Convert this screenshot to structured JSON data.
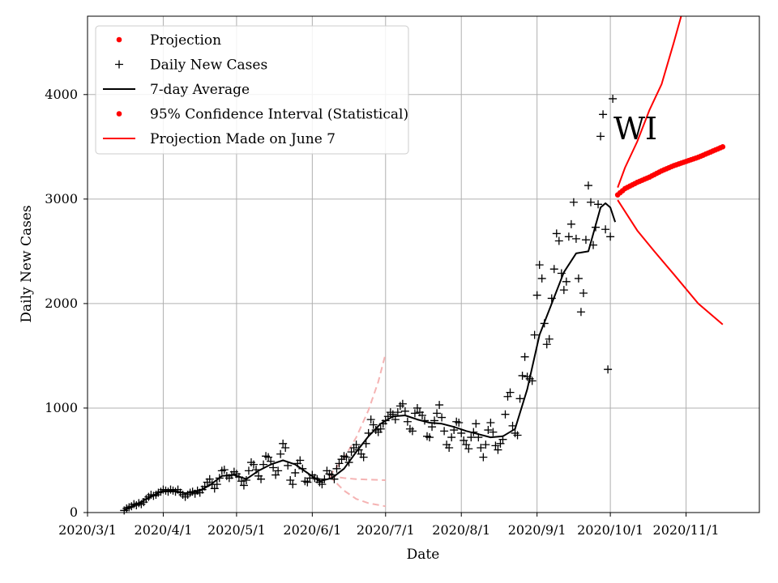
{
  "chart_data": {
    "type": "line",
    "title": "",
    "xlabel": "Date",
    "ylabel": "Daily New Cases",
    "annotation": "WI",
    "x_unit": "days since 2020-03-01",
    "xlim": [
      0,
      275
    ],
    "ylim": [
      0,
      4750
    ],
    "grid": true,
    "legend_position": "top-left",
    "x_ticks": [
      {
        "label": "2020/3/1",
        "day": 0
      },
      {
        "label": "2020/4/1",
        "day": 31
      },
      {
        "label": "2020/5/1",
        "day": 61
      },
      {
        "label": "2020/6/1",
        "day": 92
      },
      {
        "label": "2020/7/1",
        "day": 122
      },
      {
        "label": "2020/8/1",
        "day": 153
      },
      {
        "label": "2020/9/1",
        "day": 184
      },
      {
        "label": "2020/10/1",
        "day": 214
      },
      {
        "label": "2020/11/1",
        "day": 245
      }
    ],
    "y_ticks": [
      {
        "label": "0",
        "value": 0
      },
      {
        "label": "1000",
        "value": 1000
      },
      {
        "label": "2000",
        "value": 2000
      },
      {
        "label": "3000",
        "value": 3000
      },
      {
        "label": "4000",
        "value": 4000
      }
    ],
    "legend": [
      {
        "label": "Projection",
        "style": "dot",
        "color": "#ff0000"
      },
      {
        "label": "Daily New Cases",
        "style": "plus",
        "color": "#000000"
      },
      {
        "label": "7-day Average",
        "style": "line",
        "color": "#000000"
      },
      {
        "label": "95% Confidence Interval (Statistical)",
        "style": "dot",
        "color": "#ff0000"
      },
      {
        "label": "Projection Made on June 7",
        "style": "line",
        "color": "#ff0000"
      }
    ],
    "series": {
      "daily_new_cases": {
        "name": "Daily New Cases",
        "color": "#000000",
        "points": [
          [
            15,
            20
          ],
          [
            16,
            40
          ],
          [
            17,
            50
          ],
          [
            18,
            60
          ],
          [
            19,
            80
          ],
          [
            20,
            70
          ],
          [
            21,
            90
          ],
          [
            22,
            80
          ],
          [
            23,
            100
          ],
          [
            24,
            130
          ],
          [
            25,
            150
          ],
          [
            26,
            170
          ],
          [
            27,
            160
          ],
          [
            28,
            170
          ],
          [
            29,
            190
          ],
          [
            30,
            200
          ],
          [
            31,
            220
          ],
          [
            32,
            210
          ],
          [
            33,
            200
          ],
          [
            34,
            220
          ],
          [
            35,
            210
          ],
          [
            36,
            200
          ],
          [
            37,
            220
          ],
          [
            38,
            190
          ],
          [
            39,
            170
          ],
          [
            40,
            150
          ],
          [
            41,
            170
          ],
          [
            42,
            190
          ],
          [
            43,
            200
          ],
          [
            44,
            180
          ],
          [
            45,
            210
          ],
          [
            46,
            190
          ],
          [
            47,
            220
          ],
          [
            48,
            250
          ],
          [
            49,
            290
          ],
          [
            50,
            320
          ],
          [
            51,
            270
          ],
          [
            52,
            230
          ],
          [
            53,
            270
          ],
          [
            54,
            330
          ],
          [
            55,
            400
          ],
          [
            56,
            410
          ],
          [
            57,
            350
          ],
          [
            58,
            330
          ],
          [
            59,
            360
          ],
          [
            60,
            390
          ],
          [
            61,
            370
          ],
          [
            62,
            340
          ],
          [
            63,
            300
          ],
          [
            64,
            260
          ],
          [
            65,
            310
          ],
          [
            66,
            400
          ],
          [
            67,
            480
          ],
          [
            68,
            460
          ],
          [
            69,
            410
          ],
          [
            70,
            350
          ],
          [
            71,
            320
          ],
          [
            72,
            460
          ],
          [
            73,
            540
          ],
          [
            74,
            530
          ],
          [
            75,
            490
          ],
          [
            76,
            430
          ],
          [
            77,
            360
          ],
          [
            78,
            400
          ],
          [
            79,
            560
          ],
          [
            80,
            660
          ],
          [
            81,
            620
          ],
          [
            82,
            450
          ],
          [
            83,
            310
          ],
          [
            84,
            270
          ],
          [
            85,
            380
          ],
          [
            86,
            470
          ],
          [
            87,
            500
          ],
          [
            88,
            420
          ],
          [
            89,
            300
          ],
          [
            90,
            290
          ],
          [
            91,
            330
          ],
          [
            92,
            360
          ],
          [
            93,
            330
          ],
          [
            94,
            320
          ],
          [
            95,
            290
          ],
          [
            96,
            270
          ],
          [
            97,
            320
          ],
          [
            98,
            400
          ],
          [
            99,
            370
          ],
          [
            100,
            360
          ],
          [
            101,
            320
          ],
          [
            102,
            420
          ],
          [
            103,
            470
          ],
          [
            104,
            510
          ],
          [
            105,
            540
          ],
          [
            106,
            530
          ],
          [
            107,
            480
          ],
          [
            108,
            580
          ],
          [
            109,
            620
          ],
          [
            110,
            650
          ],
          [
            111,
            600
          ],
          [
            112,
            560
          ],
          [
            113,
            530
          ],
          [
            114,
            660
          ],
          [
            115,
            760
          ],
          [
            116,
            890
          ],
          [
            117,
            840
          ],
          [
            118,
            790
          ],
          [
            119,
            770
          ],
          [
            120,
            800
          ],
          [
            121,
            850
          ],
          [
            122,
            880
          ],
          [
            123,
            920
          ],
          [
            124,
            960
          ],
          [
            125,
            940
          ],
          [
            126,
            890
          ],
          [
            127,
            960
          ],
          [
            128,
            1020
          ],
          [
            129,
            1040
          ],
          [
            130,
            970
          ],
          [
            131,
            870
          ],
          [
            132,
            800
          ],
          [
            133,
            780
          ],
          [
            134,
            950
          ],
          [
            135,
            1000
          ],
          [
            136,
            960
          ],
          [
            137,
            930
          ],
          [
            138,
            880
          ],
          [
            139,
            730
          ],
          [
            140,
            720
          ],
          [
            141,
            820
          ],
          [
            142,
            880
          ],
          [
            143,
            950
          ],
          [
            144,
            1030
          ],
          [
            145,
            910
          ],
          [
            146,
            780
          ],
          [
            147,
            650
          ],
          [
            148,
            620
          ],
          [
            149,
            720
          ],
          [
            150,
            790
          ],
          [
            151,
            870
          ],
          [
            152,
            860
          ],
          [
            153,
            760
          ],
          [
            154,
            690
          ],
          [
            155,
            650
          ],
          [
            156,
            610
          ],
          [
            157,
            720
          ],
          [
            158,
            770
          ],
          [
            159,
            850
          ],
          [
            160,
            720
          ],
          [
            161,
            620
          ],
          [
            162,
            530
          ],
          [
            163,
            650
          ],
          [
            164,
            790
          ],
          [
            165,
            860
          ],
          [
            166,
            770
          ],
          [
            167,
            640
          ],
          [
            168,
            600
          ],
          [
            169,
            660
          ],
          [
            170,
            700
          ],
          [
            171,
            940
          ],
          [
            172,
            1110
          ],
          [
            173,
            1150
          ],
          [
            174,
            830
          ],
          [
            175,
            760
          ],
          [
            176,
            740
          ],
          [
            177,
            1090
          ],
          [
            178,
            1310
          ],
          [
            179,
            1490
          ],
          [
            180,
            1300
          ],
          [
            181,
            1280
          ],
          [
            182,
            1260
          ],
          [
            183,
            1700
          ],
          [
            184,
            2080
          ],
          [
            185,
            2370
          ],
          [
            186,
            2240
          ],
          [
            187,
            1810
          ],
          [
            188,
            1610
          ],
          [
            189,
            1660
          ],
          [
            190,
            2050
          ],
          [
            191,
            2330
          ],
          [
            192,
            2670
          ],
          [
            193,
            2600
          ],
          [
            194,
            2290
          ],
          [
            195,
            2130
          ],
          [
            196,
            2210
          ],
          [
            197,
            2640
          ],
          [
            198,
            2760
          ],
          [
            199,
            2970
          ],
          [
            200,
            2620
          ],
          [
            201,
            2240
          ],
          [
            202,
            1920
          ],
          [
            203,
            2100
          ],
          [
            204,
            2610
          ],
          [
            205,
            3130
          ],
          [
            206,
            2970
          ],
          [
            207,
            2560
          ],
          [
            208,
            2730
          ],
          [
            209,
            2950
          ],
          [
            210,
            3600
          ],
          [
            211,
            3810
          ],
          [
            212,
            2710
          ],
          [
            213,
            1370
          ],
          [
            214,
            2640
          ],
          [
            215,
            3960
          ]
        ]
      },
      "seven_day_average": {
        "name": "7-day Average",
        "color": "#000000",
        "points": [
          [
            15,
            20
          ],
          [
            20,
            80
          ],
          [
            25,
            140
          ],
          [
            30,
            200
          ],
          [
            35,
            210
          ],
          [
            40,
            185
          ],
          [
            45,
            200
          ],
          [
            50,
            260
          ],
          [
            55,
            350
          ],
          [
            60,
            360
          ],
          [
            65,
            320
          ],
          [
            70,
            400
          ],
          [
            75,
            460
          ],
          [
            80,
            500
          ],
          [
            85,
            460
          ],
          [
            90,
            380
          ],
          [
            95,
            300
          ],
          [
            100,
            330
          ],
          [
            105,
            420
          ],
          [
            110,
            580
          ],
          [
            115,
            730
          ],
          [
            120,
            850
          ],
          [
            125,
            920
          ],
          [
            130,
            930
          ],
          [
            135,
            890
          ],
          [
            140,
            860
          ],
          [
            145,
            850
          ],
          [
            150,
            820
          ],
          [
            155,
            780
          ],
          [
            160,
            750
          ],
          [
            165,
            720
          ],
          [
            170,
            730
          ],
          [
            175,
            800
          ],
          [
            180,
            1180
          ],
          [
            185,
            1700
          ],
          [
            190,
            2000
          ],
          [
            195,
            2300
          ],
          [
            200,
            2480
          ],
          [
            205,
            2500
          ],
          [
            210,
            2920
          ],
          [
            212,
            2960
          ],
          [
            214,
            2920
          ],
          [
            216,
            2780
          ]
        ]
      },
      "projection": {
        "name": "Projection",
        "color": "#ff0000",
        "points": [
          [
            217,
            3040
          ],
          [
            220,
            3100
          ],
          [
            225,
            3160
          ],
          [
            230,
            3210
          ],
          [
            235,
            3270
          ],
          [
            240,
            3320
          ],
          [
            245,
            3360
          ],
          [
            250,
            3400
          ],
          [
            255,
            3450
          ],
          [
            260,
            3500
          ]
        ]
      },
      "ci_upper": {
        "name": "95% Confidence Interval upper",
        "color": "#ff0000",
        "points": [
          [
            217,
            3110
          ],
          [
            220,
            3300
          ],
          [
            225,
            3550
          ],
          [
            230,
            3850
          ],
          [
            235,
            4100
          ],
          [
            240,
            4500
          ],
          [
            243,
            4750
          ]
        ]
      },
      "ci_lower": {
        "name": "95% Confidence Interval lower",
        "color": "#ff0000",
        "points": [
          [
            217,
            2990
          ],
          [
            225,
            2700
          ],
          [
            232,
            2500
          ],
          [
            240,
            2280
          ],
          [
            250,
            2000
          ],
          [
            260,
            1800
          ]
        ]
      },
      "june7_projection": {
        "name": "Projection Made on June 7",
        "color": "#f5b3b3",
        "dashed": true,
        "upper": [
          [
            99,
            350
          ],
          [
            105,
            520
          ],
          [
            110,
            720
          ],
          [
            115,
            980
          ],
          [
            119,
            1250
          ],
          [
            122,
            1520
          ]
        ],
        "middle": [
          [
            99,
            350
          ],
          [
            105,
            330
          ],
          [
            110,
            320
          ],
          [
            115,
            315
          ],
          [
            122,
            310
          ]
        ],
        "lower": [
          [
            99,
            350
          ],
          [
            105,
            210
          ],
          [
            110,
            130
          ],
          [
            115,
            90
          ],
          [
            122,
            60
          ]
        ]
      }
    }
  }
}
